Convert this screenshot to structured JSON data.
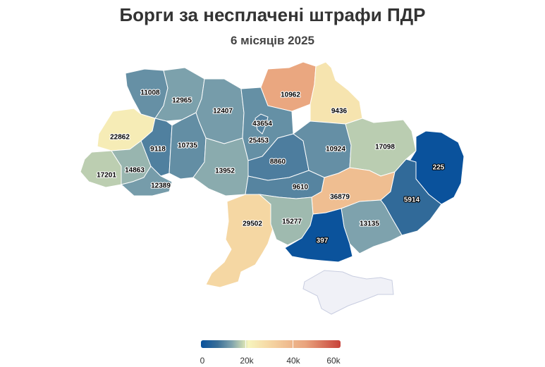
{
  "title": "Борги за несплачені штрафи ПДР",
  "subtitle": "6 місяців 2025",
  "colors": {
    "min": "#08519c",
    "mid": "#f7f4bd",
    "max": "#c7423a",
    "no_data": "#f0f1f7"
  },
  "legend": {
    "ticks": [
      "0",
      "20k",
      "40k",
      "60k"
    ],
    "min": 0,
    "max": 60000
  },
  "chart_data": {
    "type": "choropleth",
    "value_range": [
      0,
      60000
    ],
    "regions": [
      {
        "value": 11008
      },
      {
        "value": 12965
      },
      {
        "value": 12407
      },
      {
        "value": 10962
      },
      {
        "value": 9436
      },
      {
        "value": 43654
      },
      {
        "value": 25453
      },
      {
        "value": 22862
      },
      {
        "value": 9118
      },
      {
        "value": 10735
      },
      {
        "value": 17201
      },
      {
        "value": 14863
      },
      {
        "value": 12389
      },
      {
        "value": 13952
      },
      {
        "value": 8860
      },
      {
        "value": 10924
      },
      {
        "value": 17098
      },
      {
        "value": 225
      },
      {
        "value": 9610
      },
      {
        "value": 36879
      },
      {
        "value": 5914
      },
      {
        "value": 29502
      },
      {
        "value": 15277
      },
      {
        "value": 13135
      },
      {
        "value": 397
      }
    ]
  }
}
